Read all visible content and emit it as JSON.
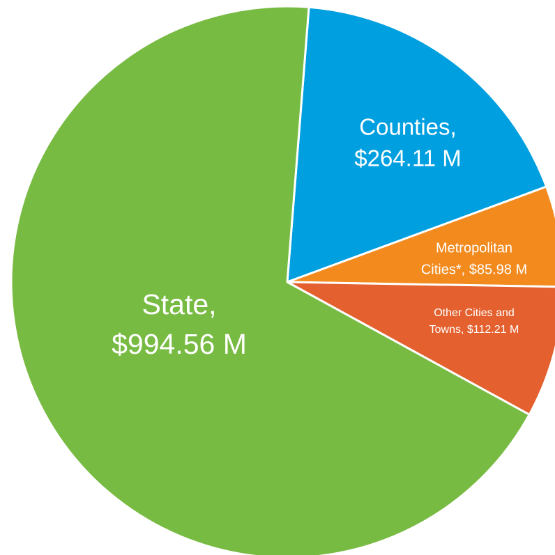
{
  "chart_data": {
    "type": "pie",
    "values": [
      264.11,
      85.98,
      112.21,
      994.56
    ],
    "value_labels": [
      [
        "Counties,",
        "$264.11 M"
      ],
      [
        "Metropolitan",
        "Cities*, $85.98 M"
      ],
      [
        "Other Cities and",
        "Towns, $112.21 M"
      ],
      [
        "State,",
        "$994.56 M"
      ]
    ],
    "colors": [
      "#009fdf",
      "#f28a1e",
      "#e4602e",
      "#78bb43"
    ]
  }
}
